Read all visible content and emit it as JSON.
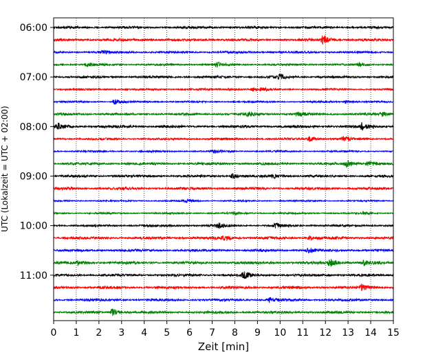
{
  "chart_data": {
    "type": "line",
    "title": "",
    "xlabel": "Zeit  [min]",
    "ylabel": "UTC (Lokalzeit = UTC + 02:00)",
    "xlim": [
      0,
      15
    ],
    "xticks": [
      "0",
      "1",
      "2",
      "3",
      "4",
      "5",
      "6",
      "7",
      "8",
      "9",
      "10",
      "11",
      "12",
      "13",
      "14",
      "15"
    ],
    "ytick_labels": [
      "06:00",
      "07:00",
      "08:00",
      "09:00",
      "10:00",
      "11:00"
    ],
    "grid": "vertical dotted",
    "line_colors": [
      "#000000",
      "#ff0000",
      "#0000ff",
      "#008000"
    ],
    "row_start_times": [
      "06:00",
      "06:15",
      "06:30",
      "06:45",
      "07:00",
      "07:15",
      "07:30",
      "07:45",
      "08:00",
      "08:15",
      "08:30",
      "08:45",
      "09:00",
      "09:15",
      "09:30",
      "09:45",
      "10:00",
      "10:15",
      "10:30",
      "10:45",
      "11:00",
      "11:15",
      "11:30",
      "11:45"
    ],
    "row_amplitude": [
      1.0,
      1.1,
      0.9,
      0.8,
      1.0,
      0.8,
      0.7,
      1.0,
      1.1,
      0.9,
      0.7,
      1.0,
      1.0,
      1.1,
      0.6,
      0.7,
      0.9,
      1.1,
      1.0,
      1.1,
      1.0,
      1.1,
      1.0,
      1.0
    ],
    "events": [
      {
        "row": 1,
        "t": 11.9,
        "a": 3.5
      },
      {
        "row": 2,
        "t": 2.2,
        "a": 1.5
      },
      {
        "row": 3,
        "t": 1.5,
        "a": 2.0
      },
      {
        "row": 3,
        "t": 7.2,
        "a": 2.2
      },
      {
        "row": 3,
        "t": 13.5,
        "a": 1.5
      },
      {
        "row": 4,
        "t": 10.0,
        "a": 2.0
      },
      {
        "row": 5,
        "t": 7.8,
        "a": 1.6
      },
      {
        "row": 5,
        "t": 8.8,
        "a": 1.6
      },
      {
        "row": 5,
        "t": 9.2,
        "a": 1.5
      },
      {
        "row": 6,
        "t": 2.7,
        "a": 3.0
      },
      {
        "row": 6,
        "t": 12.9,
        "a": 1.8
      },
      {
        "row": 7,
        "t": 8.6,
        "a": 1.8
      },
      {
        "row": 7,
        "t": 10.8,
        "a": 1.6
      },
      {
        "row": 7,
        "t": 14.5,
        "a": 1.6
      },
      {
        "row": 8,
        "t": 0.2,
        "a": 2.0
      },
      {
        "row": 8,
        "t": 13.6,
        "a": 2.4
      },
      {
        "row": 9,
        "t": 11.3,
        "a": 2.3
      },
      {
        "row": 9,
        "t": 12.8,
        "a": 2.0
      },
      {
        "row": 10,
        "t": 7.1,
        "a": 1.8
      },
      {
        "row": 11,
        "t": 12.9,
        "a": 3.0
      },
      {
        "row": 11,
        "t": 13.9,
        "a": 2.6
      },
      {
        "row": 12,
        "t": 7.9,
        "a": 2.0
      },
      {
        "row": 12,
        "t": 9.7,
        "a": 1.6
      },
      {
        "row": 14,
        "t": 5.9,
        "a": 2.0
      },
      {
        "row": 15,
        "t": 8.0,
        "a": 1.5
      },
      {
        "row": 15,
        "t": 13.7,
        "a": 1.6
      },
      {
        "row": 16,
        "t": 7.3,
        "a": 1.8
      },
      {
        "row": 16,
        "t": 9.8,
        "a": 1.6
      },
      {
        "row": 17,
        "t": 7.5,
        "a": 1.6
      },
      {
        "row": 17,
        "t": 11.3,
        "a": 1.5
      },
      {
        "row": 18,
        "t": 11.2,
        "a": 2.0
      },
      {
        "row": 19,
        "t": 1.1,
        "a": 1.5
      },
      {
        "row": 19,
        "t": 12.2,
        "a": 3.0
      },
      {
        "row": 19,
        "t": 13.7,
        "a": 1.8
      },
      {
        "row": 20,
        "t": 8.4,
        "a": 2.6
      },
      {
        "row": 21,
        "t": 13.6,
        "a": 2.0
      },
      {
        "row": 22,
        "t": 9.5,
        "a": 2.0
      },
      {
        "row": 23,
        "t": 2.6,
        "a": 3.0
      }
    ]
  }
}
